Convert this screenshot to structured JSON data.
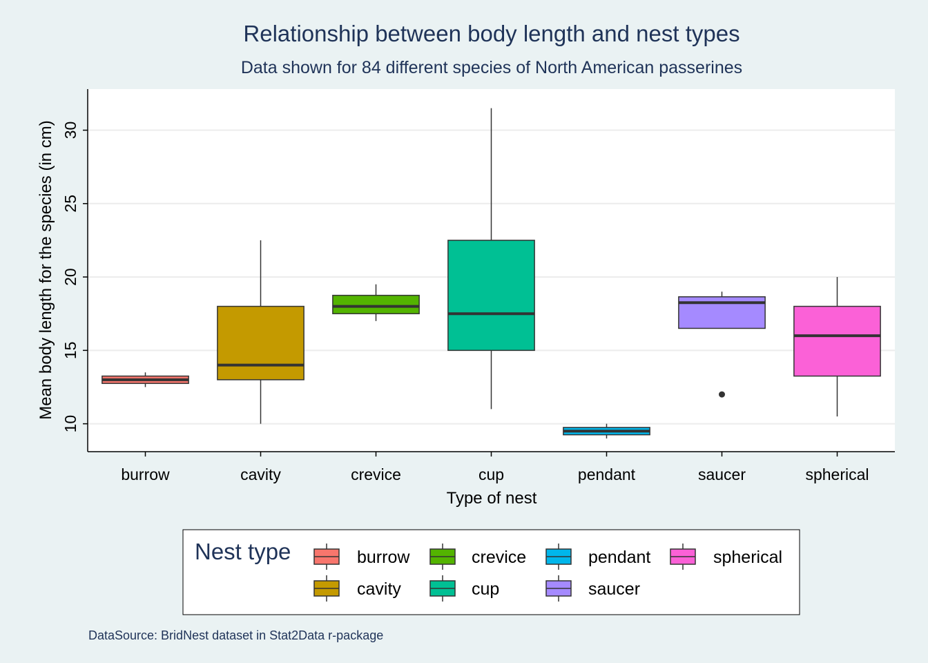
{
  "chart_data": {
    "type": "boxplot",
    "title": "Relationship between body length and nest types",
    "subtitle": "Data shown for 84 different species of North American passerines",
    "xlabel": "Type of nest",
    "ylabel": "Mean body length for the species (in cm)",
    "ylim": [
      8.1,
      32.8
    ],
    "yticks": [
      10,
      15,
      20,
      25,
      30
    ],
    "ytick_labels": [
      "10",
      "15",
      "20",
      "25",
      "30"
    ],
    "grid": true,
    "categories": [
      "burrow",
      "cavity",
      "crevice",
      "cup",
      "pendant",
      "saucer",
      "spherical"
    ],
    "boxes": [
      {
        "category": "burrow",
        "whisker_low": 12.5,
        "q1": 12.75,
        "median": 13.0,
        "q3": 13.25,
        "whisker_high": 13.5,
        "outliers": []
      },
      {
        "category": "cavity",
        "whisker_low": 10.0,
        "q1": 13.0,
        "median": 14.0,
        "q3": 18.0,
        "whisker_high": 22.5,
        "outliers": []
      },
      {
        "category": "crevice",
        "whisker_low": 17.0,
        "q1": 17.5,
        "median": 18.0,
        "q3": 18.75,
        "whisker_high": 19.5,
        "outliers": []
      },
      {
        "category": "cup",
        "whisker_low": 11.0,
        "q1": 15.0,
        "median": 17.5,
        "q3": 22.5,
        "whisker_high": 31.5,
        "outliers": []
      },
      {
        "category": "pendant",
        "whisker_low": 9.0,
        "q1": 9.25,
        "median": 9.5,
        "q3": 9.75,
        "whisker_high": 10.0,
        "outliers": []
      },
      {
        "category": "saucer",
        "whisker_low": 16.5,
        "q1": 16.5,
        "median": 18.25,
        "q3": 18.65,
        "whisker_high": 19.0,
        "outliers": [
          12.0
        ]
      },
      {
        "category": "spherical",
        "whisker_low": 10.5,
        "q1": 13.25,
        "median": 16.0,
        "q3": 18.0,
        "whisker_high": 20.0,
        "outliers": []
      }
    ],
    "colors": {
      "burrow": "#f8766d",
      "cavity": "#c49a00",
      "crevice": "#53b400",
      "cup": "#00c094",
      "pendant": "#00b6eb",
      "saucer": "#a58aff",
      "spherical": "#fb61d7"
    },
    "legend": {
      "title": "Nest type",
      "placement": "bottom",
      "entries": [
        "burrow",
        "cavity",
        "crevice",
        "cup",
        "pendant",
        "saucer",
        "spherical"
      ]
    },
    "caption": "DataSource: BridNest dataset in Stat2Data r-package"
  }
}
